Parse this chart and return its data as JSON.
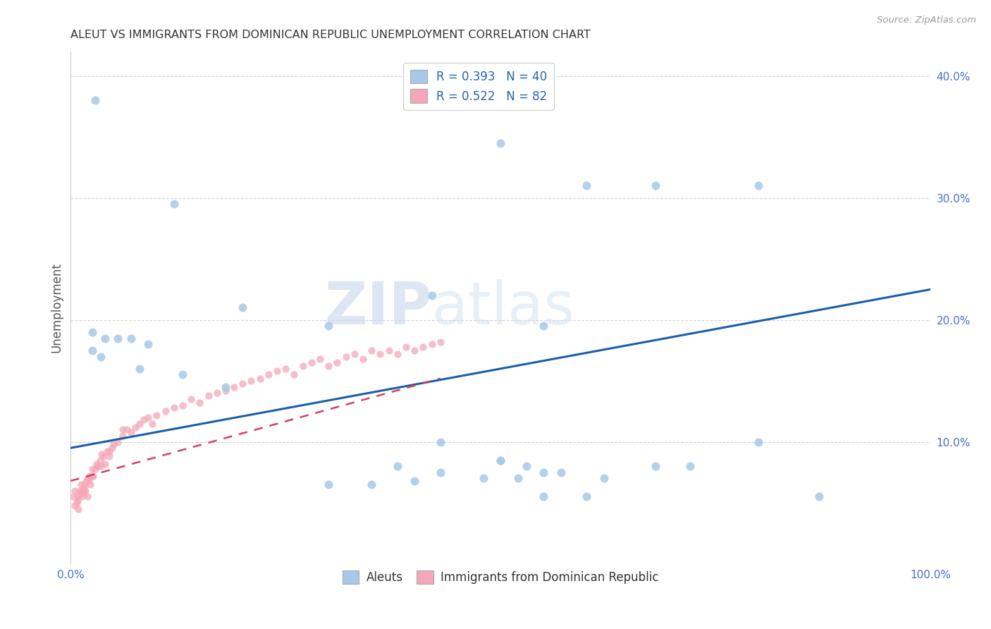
{
  "title": "ALEUT VS IMMIGRANTS FROM DOMINICAN REPUBLIC UNEMPLOYMENT CORRELATION CHART",
  "source": "Source: ZipAtlas.com",
  "ylabel": "Unemployment",
  "xlim": [
    0.0,
    1.0
  ],
  "ylim": [
    0.0,
    0.42
  ],
  "xticks": [
    0.0,
    0.25,
    0.5,
    0.75,
    1.0
  ],
  "xticklabels": [
    "0.0%",
    "",
    "",
    "",
    "100.0%"
  ],
  "yticks": [
    0.0,
    0.1,
    0.2,
    0.3,
    0.4
  ],
  "yticklabels": [
    "",
    "10.0%",
    "20.0%",
    "30.0%",
    "40.0%"
  ],
  "aleut_color": "#a8c8e8",
  "dr_color": "#f4a7b9",
  "trendline_aleut_color": "#1a5fa8",
  "trendline_dr_color": "#d44060",
  "tick_color": "#4472c4",
  "watermark_color": "#d8e4f0",
  "aleuts_x": [
    0.028,
    0.5,
    0.6,
    0.68,
    0.8,
    0.12,
    0.42,
    0.2,
    0.3,
    0.55,
    0.025,
    0.055,
    0.04,
    0.07,
    0.09,
    0.025,
    0.035,
    0.08,
    0.13,
    0.18,
    0.5,
    0.38,
    0.43,
    0.48,
    0.6,
    0.35,
    0.4,
    0.62,
    0.57,
    0.55,
    0.53,
    0.5,
    0.3,
    0.52,
    0.43,
    0.8,
    0.87,
    0.55,
    0.68,
    0.72
  ],
  "aleuts_y": [
    0.38,
    0.345,
    0.31,
    0.31,
    0.31,
    0.295,
    0.22,
    0.21,
    0.195,
    0.195,
    0.19,
    0.185,
    0.185,
    0.185,
    0.18,
    0.175,
    0.17,
    0.16,
    0.155,
    0.145,
    0.085,
    0.08,
    0.075,
    0.07,
    0.055,
    0.065,
    0.068,
    0.07,
    0.075,
    0.075,
    0.08,
    0.085,
    0.065,
    0.07,
    0.1,
    0.1,
    0.055,
    0.055,
    0.08,
    0.08
  ],
  "dr_x": [
    0.003,
    0.005,
    0.007,
    0.008,
    0.009,
    0.01,
    0.011,
    0.012,
    0.013,
    0.014,
    0.015,
    0.016,
    0.017,
    0.018,
    0.019,
    0.02,
    0.021,
    0.022,
    0.023,
    0.025,
    0.026,
    0.028,
    0.03,
    0.032,
    0.034,
    0.036,
    0.038,
    0.04,
    0.042,
    0.045,
    0.048,
    0.05,
    0.055,
    0.06,
    0.065,
    0.07,
    0.075,
    0.08,
    0.085,
    0.09,
    0.095,
    0.1,
    0.11,
    0.12,
    0.13,
    0.14,
    0.15,
    0.16,
    0.17,
    0.18,
    0.19,
    0.2,
    0.21,
    0.22,
    0.23,
    0.24,
    0.25,
    0.26,
    0.27,
    0.28,
    0.29,
    0.3,
    0.31,
    0.32,
    0.33,
    0.34,
    0.35,
    0.36,
    0.37,
    0.38,
    0.39,
    0.4,
    0.41,
    0.42,
    0.43,
    0.005,
    0.008,
    0.015,
    0.025,
    0.035,
    0.045,
    0.06
  ],
  "dr_y": [
    0.055,
    0.06,
    0.05,
    0.055,
    0.045,
    0.06,
    0.058,
    0.065,
    0.055,
    0.06,
    0.062,
    0.065,
    0.06,
    0.068,
    0.055,
    0.07,
    0.068,
    0.072,
    0.065,
    0.078,
    0.072,
    0.078,
    0.082,
    0.08,
    0.085,
    0.09,
    0.088,
    0.082,
    0.092,
    0.088,
    0.095,
    0.098,
    0.1,
    0.105,
    0.11,
    0.108,
    0.112,
    0.115,
    0.118,
    0.12,
    0.115,
    0.122,
    0.125,
    0.128,
    0.13,
    0.135,
    0.132,
    0.138,
    0.14,
    0.142,
    0.145,
    0.148,
    0.15,
    0.152,
    0.155,
    0.158,
    0.16,
    0.155,
    0.162,
    0.165,
    0.168,
    0.162,
    0.165,
    0.17,
    0.172,
    0.168,
    0.175,
    0.172,
    0.175,
    0.172,
    0.178,
    0.175,
    0.178,
    0.18,
    0.182,
    0.048,
    0.052,
    0.058,
    0.072,
    0.08,
    0.092,
    0.11
  ],
  "aleut_trend_x0": 0.0,
  "aleut_trend_x1": 1.0,
  "aleut_trend_y0": 0.095,
  "aleut_trend_y1": 0.225,
  "dr_trend_x0": 0.0,
  "dr_trend_x1": 0.43,
  "dr_trend_y0": 0.068,
  "dr_trend_y1": 0.152
}
